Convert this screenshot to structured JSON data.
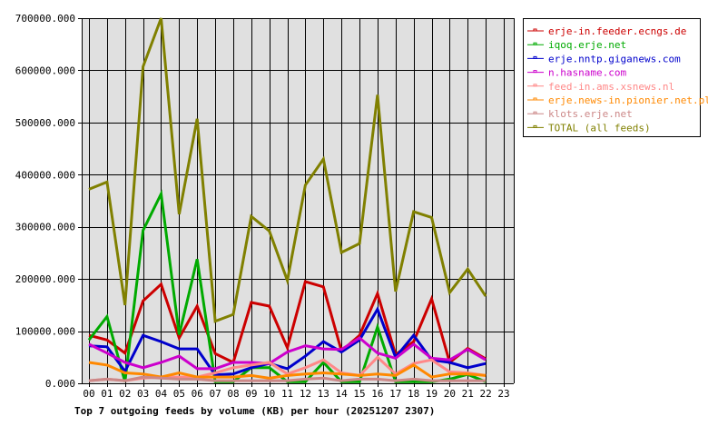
{
  "chart_data": {
    "type": "line",
    "title": "Top 7 outgoing feeds by volume (KB) per hour (20251207 2307)",
    "xlabel": "",
    "ylabel": "",
    "ylim": [
      0,
      700000
    ],
    "grid": true,
    "legend_position": "right",
    "y_ticks": [
      "0.000",
      "100000.000",
      "200000.000",
      "300000.000",
      "400000.000",
      "500000.000",
      "600000.000",
      "700000.000"
    ],
    "categories": [
      "00",
      "01",
      "02",
      "03",
      "04",
      "05",
      "06",
      "07",
      "08",
      "09",
      "10",
      "11",
      "12",
      "13",
      "14",
      "15",
      "16",
      "17",
      "18",
      "19",
      "20",
      "21",
      "22",
      "23"
    ],
    "series": [
      {
        "name": "erje-in.feeder.ecngs.de",
        "color": "#cc0000",
        "values": [
          92000,
          83000,
          58000,
          158000,
          190000,
          87000,
          148000,
          57000,
          40000,
          155000,
          148000,
          68000,
          195000,
          185000,
          62000,
          92000,
          172000,
          55000,
          80000,
          162000,
          40000,
          67000,
          47000
        ]
      },
      {
        "name": "iqoq.erje.net",
        "color": "#00aa00",
        "values": [
          83000,
          128000,
          3000,
          293000,
          363000,
          93000,
          238000,
          3000,
          3000,
          30000,
          30000,
          3000,
          3000,
          40000,
          3000,
          3000,
          108000,
          3000,
          3000,
          3000,
          8000,
          17000,
          3000
        ]
      },
      {
        "name": "erje.nntp.giganews.com",
        "color": "#0000cc",
        "values": [
          72000,
          70000,
          23000,
          92000,
          80000,
          66000,
          66000,
          16000,
          18000,
          30000,
          38000,
          28000,
          52000,
          80000,
          60000,
          83000,
          142000,
          50000,
          92000,
          45000,
          40000,
          30000,
          38000
        ]
      },
      {
        "name": "n.hasname.com",
        "color": "#cc00cc",
        "values": [
          75000,
          58000,
          40000,
          30000,
          40000,
          52000,
          28000,
          28000,
          40000,
          40000,
          38000,
          60000,
          72000,
          66000,
          65000,
          87000,
          58000,
          48000,
          75000,
          48000,
          45000,
          65000,
          45000
        ]
      },
      {
        "name": "feed-in.ams.xsnews.nl",
        "color": "#ff8888",
        "values": [
          5000,
          8000,
          5000,
          10000,
          12000,
          12000,
          12000,
          20000,
          30000,
          35000,
          40000,
          18000,
          30000,
          45000,
          20000,
          15000,
          50000,
          18000,
          38000,
          45000,
          22000,
          20000,
          15000
        ]
      },
      {
        "name": "erje.news-in.pionier.net.pl",
        "color": "#ff8800",
        "values": [
          40000,
          35000,
          20000,
          18000,
          12000,
          20000,
          12000,
          12000,
          12000,
          15000,
          10000,
          15000,
          18000,
          20000,
          18000,
          15000,
          18000,
          15000,
          35000,
          12000,
          18000,
          18000,
          15000
        ]
      },
      {
        "name": "klots.erje.net",
        "color": "#cc8888",
        "values": [
          5000,
          8000,
          5000,
          12000,
          10000,
          8000,
          8000,
          5000,
          5000,
          5000,
          5000,
          5000,
          8000,
          10000,
          5000,
          8000,
          8000,
          5000,
          8000,
          5000,
          5000,
          5000,
          5000
        ]
      },
      {
        "name": "TOTAL (all feeds)",
        "color": "#808000",
        "values": [
          372000,
          386000,
          150000,
          607000,
          700000,
          324000,
          507000,
          119000,
          132000,
          320000,
          292000,
          197000,
          380000,
          430000,
          251000,
          268000,
          553000,
          176000,
          329000,
          318000,
          174000,
          219000,
          167000
        ]
      }
    ]
  }
}
